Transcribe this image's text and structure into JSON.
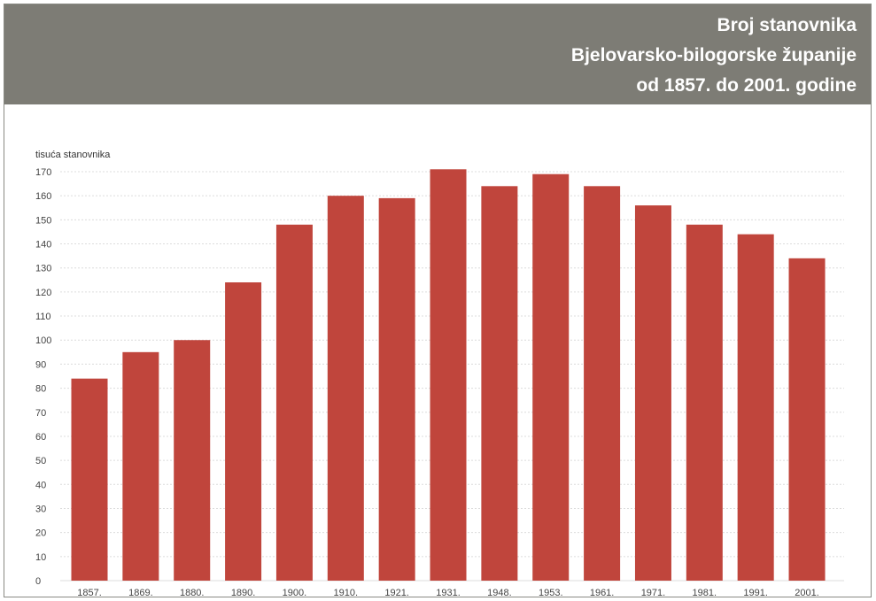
{
  "header": {
    "title_lines": [
      "Broj stanovnika",
      "Bjelovarsko-bilogorske županije",
      "od 1857. do 2001. godine"
    ],
    "background_color": "#7d7c75"
  },
  "chart_data": {
    "type": "bar",
    "title": "Broj stanovnika Bjelovarsko-bilogorske županije od 1857. do 2001. godine",
    "ylabel": "tisuća stanovnika",
    "xlabel": "",
    "ylim": [
      0,
      170
    ],
    "yticks": [
      0,
      10,
      20,
      30,
      40,
      50,
      60,
      70,
      80,
      90,
      100,
      110,
      120,
      130,
      140,
      150,
      160,
      170
    ],
    "grid": true,
    "bar_color": "#c0453c",
    "categories": [
      "1857.",
      "1869.",
      "1880.",
      "1890.",
      "1900.",
      "1910.",
      "1921.",
      "1931.",
      "1948.",
      "1953.",
      "1961.",
      "1971.",
      "1981.",
      "1991.",
      "2001."
    ],
    "values": [
      84,
      95,
      100,
      124,
      148,
      160,
      159,
      171,
      164,
      169,
      164,
      156,
      148,
      144,
      134
    ]
  }
}
